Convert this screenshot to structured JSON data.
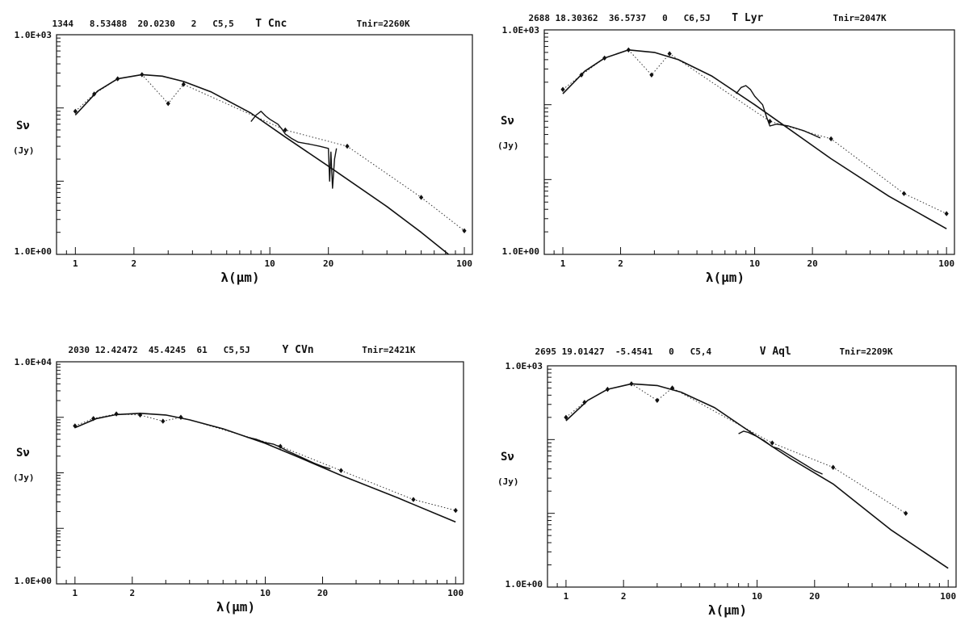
{
  "chart_data": [
    {
      "type": "line",
      "header": {
        "id": "1344",
        "ra": "8.53488",
        "dec": "20.0230",
        "n": "2",
        "spec": "C5,5",
        "name": "T Cnc",
        "tnir": "Tnir=2260K"
      },
      "xlabel": "λ(μm)",
      "ylabel": "Sν",
      "yunit": "(Jy)",
      "xscale": "log",
      "yscale": "log",
      "xlim": [
        0.8,
        110
      ],
      "ylim": [
        1,
        1000
      ],
      "ytick_labels": [
        "1.0E+03",
        "1.0E+00"
      ],
      "xticks": [
        1,
        2,
        10,
        20,
        100
      ],
      "xtick_labels": [
        "1",
        "2",
        "10",
        "20",
        "100"
      ],
      "points": [
        [
          1.0,
          90
        ],
        [
          1.25,
          155
        ],
        [
          1.65,
          250
        ],
        [
          2.2,
          285
        ],
        [
          3.0,
          115
        ],
        [
          3.6,
          210
        ],
        [
          12,
          50
        ],
        [
          25,
          30
        ],
        [
          60,
          6
        ],
        [
          100,
          2.1
        ]
      ],
      "model": [
        [
          1.0,
          80
        ],
        [
          1.3,
          170
        ],
        [
          1.65,
          250
        ],
        [
          2.2,
          285
        ],
        [
          2.8,
          272
        ],
        [
          3.6,
          230
        ],
        [
          5,
          165
        ],
        [
          8,
          85
        ],
        [
          12,
          40
        ],
        [
          20,
          16
        ],
        [
          40,
          4.5
        ],
        [
          60,
          2.0
        ],
        [
          85,
          0.95
        ]
      ],
      "dotted": [
        [
          1.0,
          90
        ],
        [
          1.25,
          155
        ],
        [
          1.65,
          250
        ],
        [
          2.2,
          285
        ],
        [
          3.0,
          115
        ],
        [
          3.6,
          210
        ],
        [
          12,
          50
        ],
        [
          25,
          30
        ],
        [
          60,
          6
        ],
        [
          100,
          2.1
        ]
      ],
      "spectrum": [
        [
          8,
          65
        ],
        [
          8.5,
          80
        ],
        [
          9,
          90
        ],
        [
          9.5,
          78
        ],
        [
          10,
          70
        ],
        [
          11,
          60
        ],
        [
          11.5,
          52
        ],
        [
          12,
          44
        ],
        [
          13,
          38
        ],
        [
          14,
          34
        ],
        [
          16,
          32
        ],
        [
          18,
          30
        ],
        [
          20,
          28
        ],
        [
          20.3,
          10
        ],
        [
          20.6,
          25
        ],
        [
          21,
          8
        ],
        [
          21.5,
          20
        ],
        [
          22,
          28
        ]
      ]
    },
    {
      "type": "line",
      "header": {
        "id": "2688",
        "ra": "18.30362",
        "dec": "36.5737",
        "n": "0",
        "spec": "C6,5J",
        "name": "T Lyr",
        "tnir": "Tnir=2047K"
      },
      "xlabel": "λ(μm)",
      "ylabel": "Sν",
      "yunit": "(Jy)",
      "xscale": "log",
      "yscale": "log",
      "xlim": [
        0.8,
        110
      ],
      "ylim": [
        1,
        1000
      ],
      "ytick_labels": [
        "1.0E+03",
        "1.0E+00"
      ],
      "xticks": [
        1,
        2,
        10,
        20,
        100
      ],
      "xtick_labels": [
        "1",
        "2",
        "10",
        "20",
        "100"
      ],
      "points": [
        [
          1.0,
          160
        ],
        [
          1.25,
          250
        ],
        [
          1.65,
          420
        ],
        [
          2.2,
          540
        ],
        [
          2.9,
          250
        ],
        [
          3.6,
          480
        ],
        [
          12,
          60
        ],
        [
          25,
          35
        ],
        [
          60,
          6.5
        ],
        [
          100,
          3.5
        ]
      ],
      "model": [
        [
          1.0,
          140
        ],
        [
          1.3,
          280
        ],
        [
          1.65,
          420
        ],
        [
          2.2,
          540
        ],
        [
          3,
          500
        ],
        [
          4,
          400
        ],
        [
          6,
          240
        ],
        [
          10,
          100
        ],
        [
          15,
          48
        ],
        [
          25,
          19
        ],
        [
          50,
          6
        ],
        [
          100,
          2.2
        ]
      ],
      "dotted": [
        [
          1.0,
          160
        ],
        [
          1.25,
          250
        ],
        [
          1.65,
          420
        ],
        [
          2.2,
          540
        ],
        [
          2.9,
          250
        ],
        [
          3.6,
          480
        ],
        [
          12,
          60
        ],
        [
          25,
          35
        ],
        [
          60,
          6.5
        ],
        [
          100,
          3.5
        ]
      ],
      "spectrum": [
        [
          8,
          140
        ],
        [
          8.5,
          170
        ],
        [
          9,
          180
        ],
        [
          9.5,
          160
        ],
        [
          10,
          130
        ],
        [
          11,
          100
        ],
        [
          11.5,
          70
        ],
        [
          12,
          52
        ],
        [
          13,
          55
        ],
        [
          15,
          52
        ],
        [
          18,
          45
        ],
        [
          20,
          40
        ],
        [
          22,
          36
        ]
      ]
    },
    {
      "type": "line",
      "header": {
        "id": "2030",
        "ra": "12.42472",
        "dec": "45.4245",
        "n": "61",
        "spec": "C5,5J",
        "name": "Y CVn",
        "tnir": "Tnir=2421K"
      },
      "xlabel": "λ(μm)",
      "ylabel": "Sν",
      "yunit": "(Jy)",
      "xscale": "log",
      "yscale": "log",
      "xlim": [
        0.8,
        110
      ],
      "ylim": [
        1,
        10000
      ],
      "ytick_labels": [
        "1.0E+04",
        "1.0E+00"
      ],
      "xticks": [
        1,
        2,
        10,
        20,
        100
      ],
      "xtick_labels": [
        "1",
        "2",
        "10",
        "20",
        "100"
      ],
      "points": [
        [
          1.0,
          700
        ],
        [
          1.25,
          950
        ],
        [
          1.65,
          1150
        ],
        [
          2.2,
          1100
        ],
        [
          2.9,
          850
        ],
        [
          3.6,
          1000
        ],
        [
          12,
          300
        ],
        [
          25,
          110
        ],
        [
          60,
          33
        ],
        [
          100,
          21
        ]
      ],
      "model": [
        [
          1.0,
          650
        ],
        [
          1.3,
          950
        ],
        [
          1.65,
          1120
        ],
        [
          2.2,
          1180
        ],
        [
          3,
          1100
        ],
        [
          4,
          900
        ],
        [
          6,
          620
        ],
        [
          10,
          340
        ],
        [
          15,
          190
        ],
        [
          25,
          90
        ],
        [
          50,
          35
        ],
        [
          100,
          13
        ]
      ],
      "dotted": [
        [
          1.0,
          700
        ],
        [
          1.25,
          950
        ],
        [
          1.65,
          1150
        ],
        [
          2.2,
          1100
        ],
        [
          2.9,
          850
        ],
        [
          3.6,
          1000
        ],
        [
          12,
          300
        ],
        [
          25,
          110
        ],
        [
          60,
          33
        ],
        [
          100,
          21
        ]
      ],
      "spectrum": [
        [
          8,
          440
        ],
        [
          9,
          400
        ],
        [
          10,
          350
        ],
        [
          11,
          330
        ],
        [
          12,
          290
        ],
        [
          13,
          250
        ],
        [
          15,
          200
        ],
        [
          18,
          150
        ],
        [
          20,
          130
        ],
        [
          22,
          118
        ]
      ]
    },
    {
      "type": "line",
      "header": {
        "id": "2695",
        "ra": "19.01427",
        "dec": "-5.4541",
        "n": "0",
        "spec": "C5,4",
        "name": "V Aql",
        "tnir": "Tnir=2209K"
      },
      "xlabel": "λ(μm)",
      "ylabel": "Sν",
      "yunit": "(Jy)",
      "xscale": "log",
      "yscale": "log",
      "xlim": [
        0.8,
        110
      ],
      "ylim": [
        1,
        1000
      ],
      "ytick_labels": [
        "1.0E+03",
        "1.0E+00"
      ],
      "xticks": [
        1,
        2,
        10,
        20,
        100
      ],
      "xtick_labels": [
        "1",
        "2",
        "10",
        "20",
        "100"
      ],
      "points": [
        [
          1.0,
          200
        ],
        [
          1.25,
          320
        ],
        [
          1.65,
          480
        ],
        [
          2.2,
          570
        ],
        [
          3.0,
          340
        ],
        [
          3.6,
          500
        ],
        [
          12,
          90
        ],
        [
          25,
          42
        ],
        [
          60,
          10
        ]
      ],
      "model": [
        [
          1.0,
          180
        ],
        [
          1.3,
          340
        ],
        [
          1.65,
          480
        ],
        [
          2.2,
          570
        ],
        [
          3,
          540
        ],
        [
          4,
          440
        ],
        [
          6,
          270
        ],
        [
          10,
          110
        ],
        [
          15,
          55
        ],
        [
          25,
          25
        ],
        [
          50,
          6
        ],
        [
          100,
          1.8
        ]
      ],
      "dotted": [
        [
          1.0,
          200
        ],
        [
          1.25,
          320
        ],
        [
          1.65,
          480
        ],
        [
          2.2,
          570
        ],
        [
          3.0,
          340
        ],
        [
          3.6,
          500
        ],
        [
          12,
          90
        ],
        [
          25,
          42
        ],
        [
          60,
          10
        ]
      ],
      "spectrum": [
        [
          8,
          120
        ],
        [
          8.5,
          130
        ],
        [
          9,
          125
        ],
        [
          10,
          110
        ],
        [
          11,
          95
        ],
        [
          12,
          80
        ],
        [
          13,
          75
        ],
        [
          15,
          60
        ],
        [
          18,
          45
        ],
        [
          20,
          38
        ],
        [
          22,
          34
        ]
      ]
    }
  ]
}
